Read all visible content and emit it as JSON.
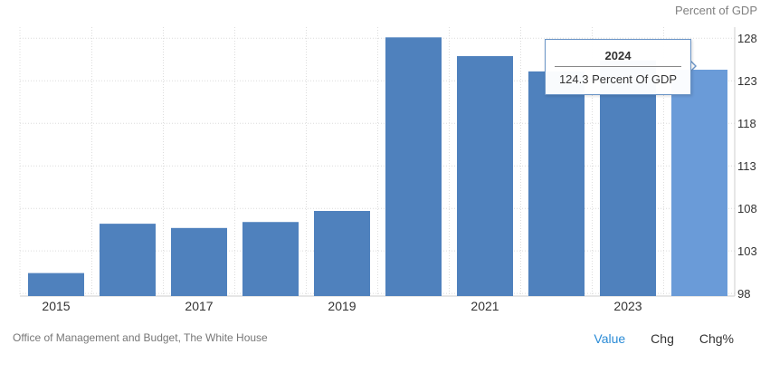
{
  "unit_label": "Percent of GDP",
  "source": "Office of Management and Budget, The White House",
  "toggles": [
    {
      "label": "Value",
      "active": true
    },
    {
      "label": "Chg",
      "active": false
    },
    {
      "label": "Chg%",
      "active": false
    }
  ],
  "tooltip": {
    "title": "2024",
    "value": "124.3 Percent Of GDP"
  },
  "colors": {
    "bar": "#4f81bd",
    "bar_highlight": "#6a9bd8",
    "grid": "#dcdcdc",
    "axis_text": "#333333"
  },
  "chart_data": {
    "type": "bar",
    "title": "",
    "xlabel": "",
    "ylabel": "Percent of GDP",
    "categories": [
      "2015",
      "2016",
      "2017",
      "2018",
      "2019",
      "2020",
      "2021",
      "2022",
      "2023",
      "2024"
    ],
    "values": [
      100.4,
      106.2,
      105.7,
      106.4,
      107.7,
      128.1,
      125.9,
      124.1,
      125.4,
      124.3
    ],
    "x_tick_labels": [
      "2015",
      "2017",
      "2019",
      "2021",
      "2023"
    ],
    "y_ticks": [
      98,
      103,
      108,
      113,
      118,
      123,
      128
    ],
    "ylim": [
      97.7,
      129.3
    ],
    "grid": true,
    "highlighted_category": "2024",
    "y_axis_side": "right"
  }
}
